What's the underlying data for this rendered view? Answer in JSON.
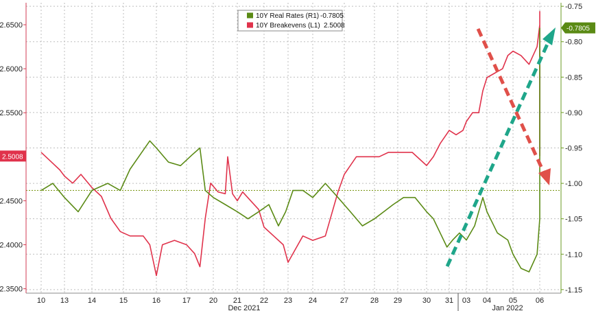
{
  "chart_data": {
    "type": "line",
    "legend": {
      "placement": "top-center",
      "entries": [
        {
          "label": "10Y Real Rates (R1)",
          "value": "-0.7805",
          "color": "#5a8a14"
        },
        {
          "label": "10Y Breakevens (L1)",
          "value": "2.5008",
          "color": "#e0324b"
        }
      ]
    },
    "x_axis": {
      "tick_labels": [
        "10",
        "13",
        "14",
        "15",
        "16",
        "17",
        "20",
        "21",
        "22",
        "23",
        "24",
        "27",
        "28",
        "29",
        "30",
        "31",
        "03",
        "04",
        "05",
        "06"
      ],
      "group_labels": [
        "Dec 2021",
        "Jan 2022"
      ]
    },
    "left_axis": {
      "ylim": [
        2.345,
        2.675
      ],
      "ticks": [
        "2.6500",
        "2.6000",
        "2.5500",
        "2.4500",
        "2.4000",
        "2.3500"
      ],
      "tick_values": [
        2.65,
        2.6,
        2.55,
        2.45,
        2.4,
        2.35
      ],
      "last_value_label": "2.5008"
    },
    "right_axis": {
      "ylim": [
        -1.155,
        -0.745
      ],
      "ticks": [
        "-0.75",
        "-0.80",
        "-0.85",
        "-0.90",
        "-0.95",
        "-1.00",
        "-1.05",
        "-1.10",
        "-1.15"
      ],
      "tick_values": [
        -0.75,
        -0.8,
        -0.85,
        -0.9,
        -0.95,
        -1.0,
        -1.05,
        -1.1,
        -1.15
      ],
      "last_value_label": "-0.7805",
      "reference_line": -1.01
    },
    "grid": true,
    "series": [
      {
        "name": "10Y Breakevens (L1)",
        "axis": "left",
        "color": "#e0324b",
        "points": [
          [
            0,
            2.505
          ],
          [
            0.4,
            2.495
          ],
          [
            0.8,
            2.485
          ],
          [
            1.0,
            2.478
          ],
          [
            1.3,
            2.47
          ],
          [
            1.6,
            2.48
          ],
          [
            2.0,
            2.465
          ],
          [
            2.3,
            2.455
          ],
          [
            2.6,
            2.43
          ],
          [
            2.9,
            2.415
          ],
          [
            3.2,
            2.41
          ],
          [
            3.6,
            2.41
          ],
          [
            3.8,
            2.4
          ],
          [
            4.0,
            2.365
          ],
          [
            4.2,
            2.4
          ],
          [
            4.6,
            2.405
          ],
          [
            5.0,
            2.4
          ],
          [
            5.3,
            2.39
          ],
          [
            5.5,
            2.375
          ],
          [
            5.7,
            2.43
          ],
          [
            5.9,
            2.47
          ],
          [
            6.2,
            2.46
          ],
          [
            6.5,
            2.458
          ],
          [
            6.6,
            2.5
          ],
          [
            6.8,
            2.458
          ],
          [
            7.0,
            2.45
          ],
          [
            7.2,
            2.46
          ],
          [
            7.5,
            2.45
          ],
          [
            7.8,
            2.44
          ],
          [
            8.0,
            2.42
          ],
          [
            8.4,
            2.41
          ],
          [
            8.8,
            2.4
          ],
          [
            9.0,
            2.38
          ],
          [
            9.3,
            2.395
          ],
          [
            9.6,
            2.41
          ],
          [
            10.0,
            2.405
          ],
          [
            10.4,
            2.41
          ],
          [
            10.8,
            2.46
          ],
          [
            11.0,
            2.48
          ],
          [
            11.4,
            2.5
          ],
          [
            11.8,
            2.5
          ],
          [
            12.2,
            2.5
          ],
          [
            12.6,
            2.505
          ],
          [
            13.0,
            2.505
          ],
          [
            13.5,
            2.505
          ],
          [
            14.0,
            2.49
          ],
          [
            14.3,
            2.5
          ],
          [
            14.6,
            2.515
          ],
          [
            15.0,
            2.53
          ],
          [
            15.4,
            2.525
          ],
          [
            15.8,
            2.53
          ],
          [
            16.0,
            2.54
          ],
          [
            16.3,
            2.55
          ],
          [
            16.6,
            2.55
          ],
          [
            16.8,
            2.575
          ],
          [
            17.0,
            2.59
          ],
          [
            17.3,
            2.595
          ],
          [
            17.6,
            2.6
          ],
          [
            17.8,
            2.615
          ],
          [
            18.0,
            2.62
          ],
          [
            18.3,
            2.615
          ],
          [
            18.6,
            2.605
          ],
          [
            18.9,
            2.625
          ],
          [
            19.2,
            2.65
          ],
          [
            19.4,
            2.66
          ],
          [
            19.6,
            2.665
          ],
          [
            19.9,
            2.665
          ],
          [
            20.2,
            2.64
          ],
          [
            20.5,
            2.63
          ],
          [
            20.8,
            2.61
          ],
          [
            21.1,
            2.595
          ],
          [
            21.4,
            2.565
          ],
          [
            21.7,
            2.55
          ],
          [
            22.0,
            2.56
          ],
          [
            22.3,
            2.555
          ],
          [
            22.6,
            2.54
          ],
          [
            22.8,
            2.5008
          ]
        ]
      },
      {
        "name": "10Y Real Rates (R1)",
        "axis": "right",
        "color": "#5a8a14",
        "points": [
          [
            0,
            -1.01
          ],
          [
            0.5,
            -1.0
          ],
          [
            1.0,
            -1.02
          ],
          [
            1.5,
            -1.04
          ],
          [
            2.0,
            -1.01
          ],
          [
            2.5,
            -1.0
          ],
          [
            2.9,
            -1.01
          ],
          [
            3.2,
            -0.98
          ],
          [
            3.5,
            -0.96
          ],
          [
            3.8,
            -0.94
          ],
          [
            4.0,
            -0.95
          ],
          [
            4.4,
            -0.97
          ],
          [
            4.8,
            -0.975
          ],
          [
            5.2,
            -0.96
          ],
          [
            5.5,
            -0.95
          ],
          [
            5.7,
            -1.01
          ],
          [
            6.0,
            -1.02
          ],
          [
            6.5,
            -1.03
          ],
          [
            7.0,
            -1.04
          ],
          [
            7.4,
            -1.05
          ],
          [
            7.8,
            -1.04
          ],
          [
            8.2,
            -1.03
          ],
          [
            8.6,
            -1.06
          ],
          [
            8.9,
            -1.04
          ],
          [
            9.2,
            -1.01
          ],
          [
            9.6,
            -1.01
          ],
          [
            10.0,
            -1.02
          ],
          [
            10.4,
            -1.0
          ],
          [
            10.8,
            -1.02
          ],
          [
            11.2,
            -1.04
          ],
          [
            11.6,
            -1.06
          ],
          [
            12.0,
            -1.05
          ],
          [
            12.4,
            -1.04
          ],
          [
            12.8,
            -1.03
          ],
          [
            13.2,
            -1.02
          ],
          [
            13.6,
            -1.02
          ],
          [
            14.0,
            -1.04
          ],
          [
            14.3,
            -1.05
          ],
          [
            14.6,
            -1.07
          ],
          [
            14.9,
            -1.09
          ],
          [
            15.2,
            -1.08
          ],
          [
            15.6,
            -1.07
          ],
          [
            16.0,
            -1.08
          ],
          [
            16.4,
            -1.06
          ],
          [
            16.8,
            -1.02
          ],
          [
            17.0,
            -1.04
          ],
          [
            17.4,
            -1.07
          ],
          [
            17.8,
            -1.08
          ],
          [
            18.0,
            -1.1
          ],
          [
            18.3,
            -1.12
          ],
          [
            18.6,
            -1.125
          ],
          [
            18.9,
            -1.1
          ],
          [
            19.2,
            -1.05
          ],
          [
            19.5,
            -1.02
          ],
          [
            19.8,
            -1.04
          ],
          [
            20.0,
            -1.03
          ],
          [
            20.3,
            -1.01
          ],
          [
            20.6,
            -0.98
          ],
          [
            20.9,
            -0.95
          ],
          [
            21.2,
            -0.95
          ],
          [
            21.5,
            -0.92
          ],
          [
            21.8,
            -0.89
          ],
          [
            22.1,
            -0.86
          ],
          [
            22.4,
            -0.84
          ],
          [
            22.6,
            -0.8
          ],
          [
            22.8,
            -0.7805
          ]
        ]
      }
    ]
  }
}
